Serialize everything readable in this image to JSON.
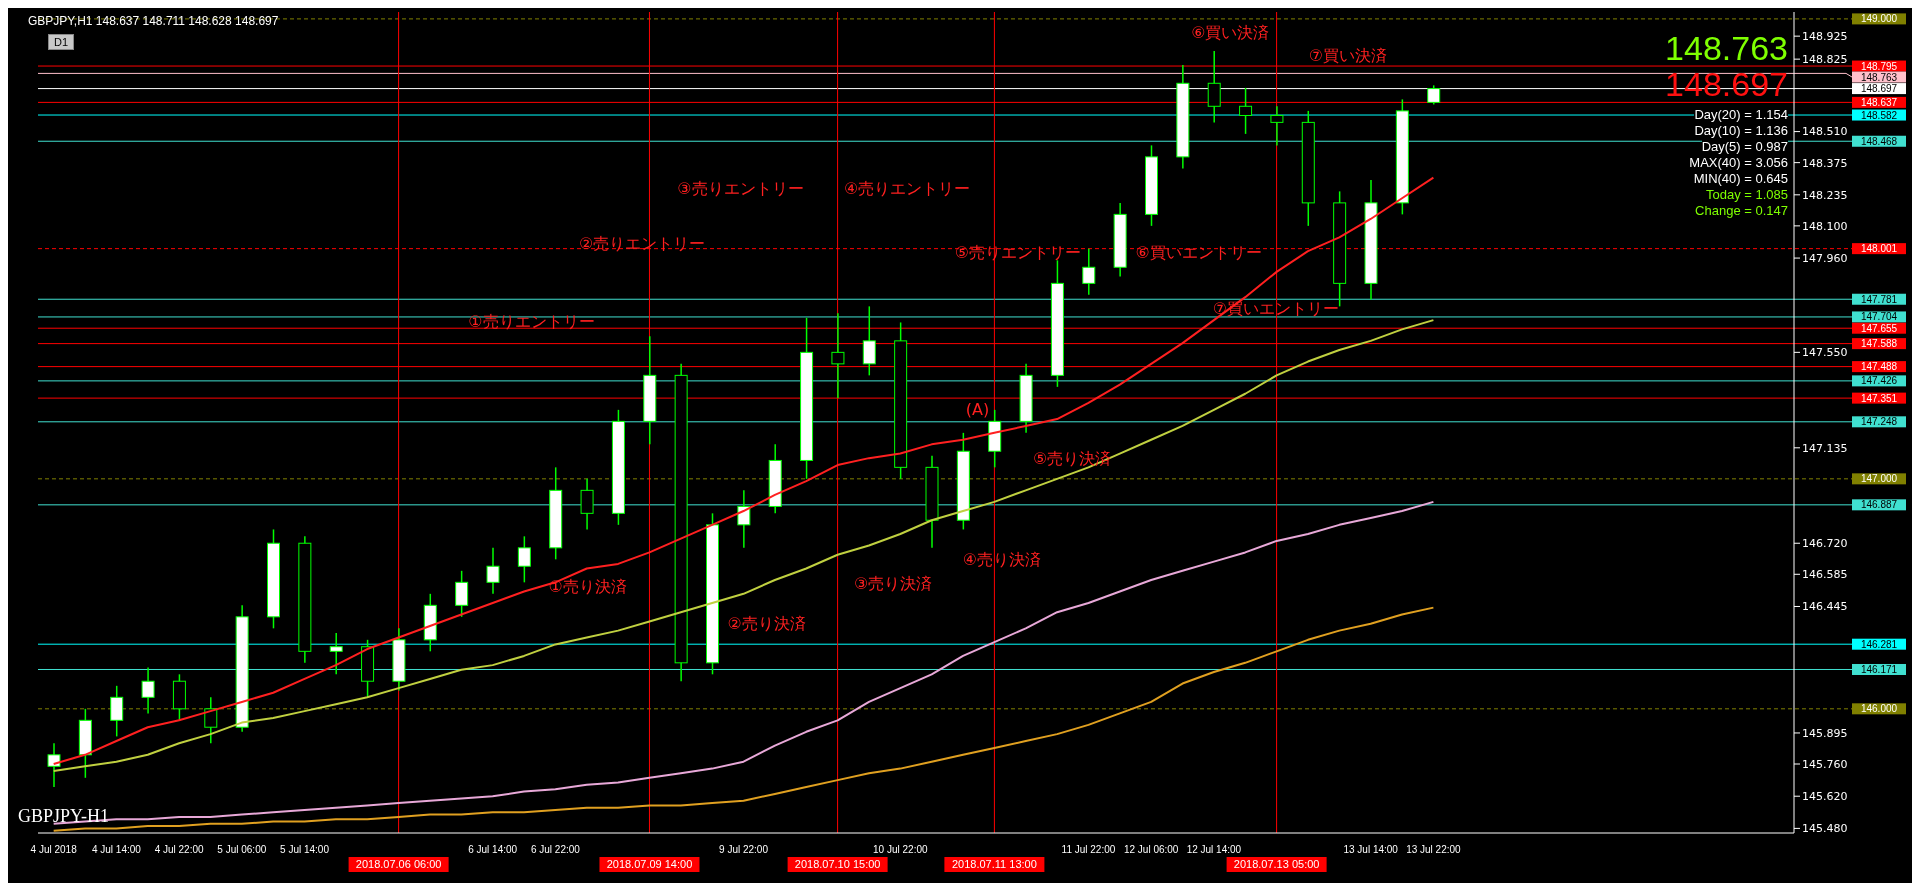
{
  "chart_data": {
    "type": "candlestick",
    "title": "GBPJPY,H1  148.637 148.711 148.628 148.697",
    "color": "#00ff00",
    "categories": [
      "4 Jul 2018",
      null,
      "4 Jul 14:00",
      null,
      "4 Jul 22:00",
      null,
      "5 Jul 06:00",
      null,
      "5 Jul 14:00",
      null,
      null,
      "2018.07.06 06:00",
      null,
      null,
      "6 Jul 14:00",
      null,
      "6 Jul 22:00",
      null,
      null,
      "2018.07.09 14:00",
      null,
      null,
      "9 Jul 22:00",
      null,
      null,
      "2018.07.10 15:00",
      null,
      "10 Jul 22:00",
      null,
      null,
      "2018.07.11 13:00",
      null,
      null,
      "11 Jul 22:00",
      null,
      "12 Jul 06:00",
      null,
      "12 Jul 14:00",
      null,
      "2018.07.13 05:00",
      null,
      null,
      "13 Jul 14:00",
      null,
      "13 Jul 22:00",
      null,
      null,
      null,
      null,
      null,
      null,
      null,
      null,
      null,
      null,
      null
    ],
    "ohlc": [
      [
        145.75,
        145.85,
        145.66,
        145.8
      ],
      [
        145.8,
        146.0,
        145.7,
        145.95
      ],
      [
        145.95,
        146.1,
        145.88,
        146.05
      ],
      [
        146.05,
        146.18,
        145.98,
        146.12
      ],
      [
        146.12,
        146.15,
        145.95,
        146.0
      ],
      [
        146.0,
        146.05,
        145.85,
        145.92
      ],
      [
        145.92,
        146.45,
        145.9,
        146.4
      ],
      [
        146.4,
        146.78,
        146.35,
        146.72
      ],
      [
        146.72,
        146.75,
        146.2,
        146.25
      ],
      [
        146.25,
        146.33,
        146.15,
        146.27
      ],
      [
        146.27,
        146.3,
        146.05,
        146.12
      ],
      [
        146.12,
        146.35,
        146.08,
        146.3
      ],
      [
        146.3,
        146.5,
        146.25,
        146.45
      ],
      [
        146.45,
        146.6,
        146.4,
        146.55
      ],
      [
        146.55,
        146.7,
        146.5,
        146.62
      ],
      [
        146.62,
        146.75,
        146.55,
        146.7
      ],
      [
        146.7,
        147.05,
        146.65,
        146.95
      ],
      [
        146.95,
        147.0,
        146.78,
        146.85
      ],
      [
        146.85,
        147.3,
        146.8,
        147.25
      ],
      [
        147.25,
        147.62,
        147.15,
        147.45
      ],
      [
        147.45,
        147.5,
        146.12,
        146.2
      ],
      [
        146.2,
        146.85,
        146.15,
        146.8
      ],
      [
        146.8,
        146.95,
        146.7,
        146.88
      ],
      [
        146.88,
        147.15,
        146.85,
        147.08
      ],
      [
        147.08,
        147.7,
        147.0,
        147.55
      ],
      [
        147.55,
        147.72,
        147.35,
        147.5
      ],
      [
        147.5,
        147.75,
        147.45,
        147.6
      ],
      [
        147.6,
        147.68,
        147.0,
        147.05
      ],
      [
        147.05,
        147.1,
        146.7,
        146.82
      ],
      [
        146.82,
        147.2,
        146.78,
        147.12
      ],
      [
        147.12,
        147.3,
        147.05,
        147.25
      ],
      [
        147.25,
        147.5,
        147.2,
        147.45
      ],
      [
        147.45,
        147.95,
        147.4,
        147.85
      ],
      [
        147.85,
        148.0,
        147.8,
        147.92
      ],
      [
        147.92,
        148.2,
        147.88,
        148.15
      ],
      [
        148.15,
        148.45,
        148.1,
        148.4
      ],
      [
        148.4,
        148.8,
        148.35,
        148.72
      ],
      [
        148.72,
        148.86,
        148.55,
        148.62
      ],
      [
        148.62,
        148.7,
        148.5,
        148.58
      ],
      [
        148.58,
        148.62,
        148.45,
        148.55
      ],
      [
        148.55,
        148.6,
        148.1,
        148.2
      ],
      [
        148.2,
        148.25,
        147.75,
        147.85
      ],
      [
        147.85,
        148.3,
        147.78,
        148.2
      ],
      [
        148.2,
        148.65,
        148.15,
        148.6
      ],
      [
        148.637,
        148.711,
        148.628,
        148.697
      ],
      null,
      null,
      null,
      null,
      null,
      null,
      null,
      null,
      null,
      null,
      null
    ],
    "series": [
      {
        "type": "line",
        "color": "#ff2020",
        "values": [
          145.76,
          145.8,
          145.86,
          145.92,
          145.95,
          145.99,
          146.03,
          146.07,
          146.13,
          146.19,
          146.26,
          146.31,
          146.36,
          146.41,
          146.46,
          146.51,
          146.55,
          146.61,
          146.63,
          146.68,
          146.74,
          146.8,
          146.86,
          146.93,
          146.99,
          147.06,
          147.09,
          147.11,
          147.15,
          147.17,
          147.2,
          147.23,
          147.26,
          147.33,
          147.41,
          147.5,
          147.59,
          147.69,
          147.79,
          147.9,
          147.99,
          148.05,
          148.13,
          148.22,
          148.31,
          null,
          null,
          null,
          null,
          null,
          null,
          null,
          null,
          null,
          null,
          null
        ]
      },
      {
        "type": "line",
        "color": "#c0d040",
        "values": [
          145.73,
          145.75,
          145.77,
          145.8,
          145.85,
          145.89,
          145.94,
          145.96,
          145.99,
          146.02,
          146.05,
          146.09,
          146.13,
          146.17,
          146.19,
          146.23,
          146.28,
          146.31,
          146.34,
          146.38,
          146.42,
          146.46,
          146.5,
          146.56,
          146.61,
          146.67,
          146.71,
          146.76,
          146.82,
          146.86,
          146.9,
          146.95,
          147.0,
          147.05,
          147.11,
          147.17,
          147.23,
          147.3,
          147.37,
          147.45,
          147.51,
          147.56,
          147.6,
          147.65,
          147.69,
          null,
          null,
          null,
          null,
          null,
          null,
          null,
          null,
          null,
          null,
          null
        ]
      },
      {
        "type": "line",
        "color": "#e8a8d8",
        "values": [
          145.5,
          145.51,
          145.52,
          145.52,
          145.53,
          145.53,
          145.54,
          145.55,
          145.56,
          145.57,
          145.58,
          145.59,
          145.6,
          145.61,
          145.62,
          145.64,
          145.65,
          145.67,
          145.68,
          145.7,
          145.72,
          145.74,
          145.77,
          145.84,
          145.9,
          145.95,
          146.03,
          146.09,
          146.15,
          146.23,
          146.29,
          146.35,
          146.42,
          146.46,
          146.51,
          146.56,
          146.6,
          146.64,
          146.68,
          146.73,
          146.76,
          146.8,
          146.83,
          146.86,
          146.9,
          null,
          null,
          null,
          null,
          null,
          null,
          null,
          null,
          null,
          null,
          null
        ]
      },
      {
        "type": "line",
        "color": "#e0a020",
        "values": [
          145.47,
          145.48,
          145.48,
          145.49,
          145.49,
          145.5,
          145.5,
          145.51,
          145.51,
          145.52,
          145.52,
          145.53,
          145.54,
          145.54,
          145.55,
          145.55,
          145.56,
          145.57,
          145.57,
          145.58,
          145.58,
          145.59,
          145.6,
          145.63,
          145.66,
          145.69,
          145.72,
          145.74,
          145.77,
          145.8,
          145.83,
          145.86,
          145.89,
          145.93,
          145.98,
          146.03,
          146.11,
          146.16,
          146.2,
          146.25,
          146.3,
          146.34,
          146.37,
          146.41,
          146.44,
          null,
          null,
          null,
          null,
          null,
          null,
          null,
          null,
          null,
          null,
          null
        ]
      }
    ],
    "ylim": [
      145.46,
      149.03
    ],
    "yticks": [
      148.925,
      {
        "value": 148.51,
        "label": "148.510"
      },
      148.375,
      148.235,
      {
        "value": 148.1,
        "label": "148.100"
      },
      {
        "value": 147.96,
        "label": "147.960"
      },
      148.825,
      {
        "value": 147.55,
        "label": "147.550"
      },
      147.135,
      {
        "value": 146.72,
        "label": "146.720"
      },
      146.585,
      146.445,
      145.895,
      {
        "value": 145.76,
        "label": "145.760"
      },
      {
        "value": 145.62,
        "label": "145.620"
      },
      {
        "value": 145.48,
        "label": "145.480"
      }
    ],
    "ref_lines": [
      {
        "axis": "y",
        "value": 149.0,
        "label": "149.000",
        "color": "#808000",
        "line_style": "dashed"
      },
      {
        "axis": "y",
        "value": 148.795,
        "label": "148.795",
        "color": "#ff0000"
      },
      {
        "axis": "y",
        "value": 148.763,
        "label": "148.763",
        "color": "#ffc0cb"
      },
      {
        "axis": "y",
        "value": 148.697,
        "label": "148.697",
        "color": "#ffffff"
      },
      {
        "axis": "y",
        "value": 148.637,
        "label": "148.637",
        "color": "#ff0000"
      },
      {
        "axis": "y",
        "value": 148.582,
        "label": "148.582",
        "color": "#00ffff"
      },
      {
        "axis": "y",
        "value": 148.468,
        "label": "148.468",
        "color": "#40e0d0"
      },
      {
        "axis": "y",
        "value": 148.001,
        "label": "148.001",
        "color": "#ff0000",
        "line_style": "dashed"
      },
      {
        "axis": "y",
        "value": 147.781,
        "label": "147.781",
        "color": "#40e0d0"
      },
      {
        "axis": "y",
        "value": 147.704,
        "label": "147.704",
        "color": "#40e0d0"
      },
      {
        "axis": "y",
        "value": 147.655,
        "label": "147.655",
        "color": "#ff0000"
      },
      {
        "axis": "y",
        "value": 147.588,
        "label": "147.588",
        "color": "#ff0000"
      },
      {
        "axis": "y",
        "value": 147.488,
        "label": "147.488",
        "color": "#ff0000"
      },
      {
        "axis": "y",
        "value": 147.426,
        "label": "147.426",
        "color": "#40e0d0"
      },
      {
        "axis": "y",
        "value": 147.351,
        "label": "147.351",
        "color": "#ff0000"
      },
      {
        "axis": "y",
        "value": 147.248,
        "label": "147.248",
        "color": "#40e0d0"
      },
      {
        "axis": "y",
        "value": 147.0,
        "label": "147.000",
        "color": "#808000",
        "line_style": "dashed"
      },
      {
        "axis": "y",
        "value": 146.887,
        "label": "146.887",
        "color": "#40e0d0"
      },
      {
        "axis": "y",
        "value": 146.281,
        "label": "146.281",
        "color": "#00ffff"
      },
      {
        "axis": "y",
        "value": 146.171,
        "label": "146.171",
        "color": "#40e0d0"
      },
      {
        "axis": "y",
        "value": 146.0,
        "label": "146.000",
        "color": "#808000",
        "line_style": "dashed"
      },
      {
        "axis": "x",
        "value": "2018.07.06 06:00",
        "color": "#ff0000"
      },
      {
        "axis": "x",
        "value": "2018.07.09 14:00",
        "color": "#ff0000"
      },
      {
        "axis": "x",
        "value": "2018.07.10 15:00",
        "color": "#ff0000"
      },
      {
        "axis": "x",
        "value": "2018.07.11 13:00",
        "color": "#ff0000"
      },
      {
        "axis": "x",
        "value": "2018.07.13 05:00",
        "color": "#ff0000"
      }
    ],
    "annotations": [
      "GBPJPY-H1",
      "D1",
      "148.763",
      "148.697",
      "Day(20) = 1.154",
      "Day(10) = 1.136",
      "Day(5) = 0.987",
      "MAX(40) = 3.056",
      "MIN(40) = 0.645",
      "Today = 1.085",
      "Change = 0.147",
      "①売りエントリー",
      "②売りエントリー",
      "③売りエントリー",
      "④売りエントリー",
      "⑤売りエントリー",
      "⑥買いエントリー",
      "⑦買いエントリー",
      "①売り決済",
      "②売り決済",
      "③売り決済",
      "④売り決済",
      "⑤売り決済",
      "⑥買い決済",
      "⑦買い決済",
      "(A)"
    ]
  }
}
